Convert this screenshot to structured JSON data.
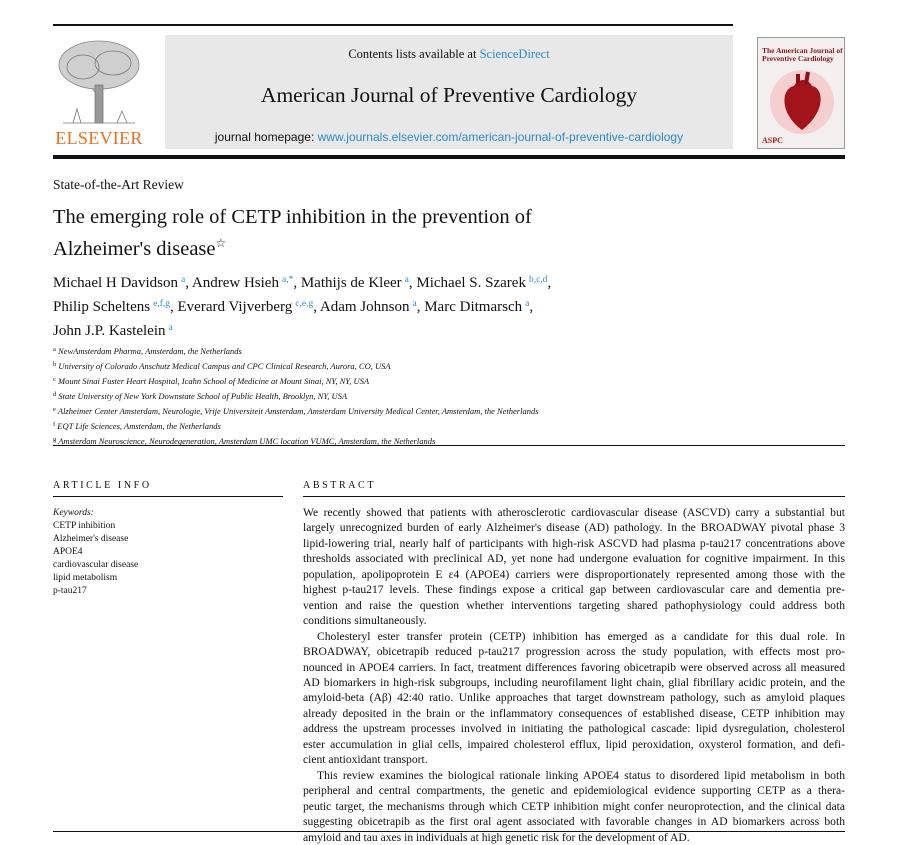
{
  "header": {
    "contents_prefix": "Contents lists available at ",
    "contents_link": "ScienceDirect",
    "journal": "American Journal of Preventive Cardiology",
    "homepage_prefix": "journal homepage: ",
    "homepage_link": "www.journals.elsevier.com/american-journal-of-preventive-cardiology",
    "publisher": "ELSEVIER",
    "cover_title": "The American Journal of Preventive Cardiology",
    "cover_badge": "ASPC"
  },
  "article": {
    "type": "State-of-the-Art Review",
    "title_line1": "The emerging role of CETP inhibition in the prevention of",
    "title_line2": "Alzheimer's disease",
    "title_mark": "☆",
    "authors": [
      {
        "name": "Michael H Davidson",
        "sup": "a"
      },
      {
        "name": "Andrew Hsieh",
        "sup": "a,*"
      },
      {
        "name": "Mathijs de Kleer",
        "sup": "a"
      },
      {
        "name": "Michael S. Szarek",
        "sup": "b,c,d"
      },
      {
        "name": "Philip Scheltens",
        "sup": "e,f,g"
      },
      {
        "name": "Everard Vijverberg",
        "sup": "c,e,g"
      },
      {
        "name": "Adam Johnson",
        "sup": "a"
      },
      {
        "name": "Marc Ditmarsch",
        "sup": "a"
      },
      {
        "name": "John J.P. Kastelein",
        "sup": "a"
      }
    ],
    "affiliations": [
      {
        "key": "a",
        "text": "NewAmsterdam Pharma, Amsterdam, the Netherlands"
      },
      {
        "key": "b",
        "text": "University of Colorado Anschutz Medical Campus and CPC Clinical Research, Aurora, CO, USA"
      },
      {
        "key": "c",
        "text": "Mount Sinai Fuster Heart Hospital, Icahn School of Medicine at Mount Sinai, NY, NY, USA"
      },
      {
        "key": "d",
        "text": "State University of New York Downstate School of Public Health, Brooklyn, NY, USA"
      },
      {
        "key": "e",
        "text": "Alzheimer Center Amsterdam, Neurologie, Vrije Universiteit Amsterdam, Amsterdam University Medical Center, Amsterdam, the Netherlands"
      },
      {
        "key": "f",
        "text": "EQT Life Sciences, Amsterdam, the Netherlands"
      },
      {
        "key": "g",
        "text": "Amsterdam Neuroscience, Neurodegeneration, Amsterdam UMC location VUMC, Amsterdam, the Netherlands"
      }
    ]
  },
  "article_info": {
    "heading": "ARTICLE INFO",
    "keywords_label": "Keywords:",
    "keywords": [
      "CETP inhibition",
      "Alzheimer's disease",
      "APOE4",
      "cardiovascular disease",
      "lipid metabolism",
      "p-tau217"
    ]
  },
  "abstract": {
    "heading": "ABSTRACT",
    "paragraphs": [
      [
        "We recently showed that patients with atherosclerotic cardiovascular disease (ASCVD) carry a substantial but",
        "largely unrecognized burden of early Alzheimer's disease (AD) pathology. In the BROADWAY pivotal phase 3",
        "lipid-lowering trial, nearly half of participants with high-risk ASCVD had plasma p-tau217 concentrations above",
        "thresholds associated with preclinical AD, yet none had undergone evaluation for cognitive impairment. In this",
        "population, apolipoprotein E ε4 (APOE4) carriers were disproportionately represented among those with the",
        "highest p-tau217 levels. These findings expose a critical gap between cardiovascular care and dementia pre-",
        "vention and raise the question whether interventions targeting shared pathophysiology could address both",
        "conditions simultaneously."
      ],
      [
        "Cholesteryl ester transfer protein (CETP) inhibition has emerged as a candidate for this dual role. In",
        "BROADWAY, obicetrapib reduced p-tau217 progression across the study population, with effects most pro-",
        "nounced in APOE4 carriers. In fact, treatment differences favoring obicetrapib were observed across all measured",
        "AD biomarkers in high-risk subgroups, including neurofilament light chain, glial fibrillary acidic protein, and the",
        "amyloid-beta (Aβ) 42:40 ratio. Unlike approaches that target downstream pathology, such as amyloid plaques",
        "already deposited in the brain or the inflammatory consequences of established disease, CETP inhibition may",
        "address the upstream processes involved in initiating the pathological cascade: lipid dysregulation, cholesterol",
        "ester accumulation in glial cells, impaired cholesterol efflux, lipid peroxidation, oxysterol formation, and defi-",
        "cient antioxidant transport."
      ],
      [
        "This review examines the biological rationale linking APOE4 status to disordered lipid metabolism in both",
        "peripheral and central compartments, the genetic and epidemiological evidence supporting CETP as a thera-",
        "peutic target, the mechanisms through which CETP inhibition might confer neuroprotection, and the clinical data",
        "suggesting obicetrapib as the first oral agent associated with favorable changes in AD biomarkers across both",
        "amyloid and tau axes in individuals at high genetic risk for the development of AD."
      ]
    ]
  },
  "colors": {
    "link": "#2a8bd0",
    "elsevier": "#e9711c",
    "banner": "#e8e8e8"
  }
}
